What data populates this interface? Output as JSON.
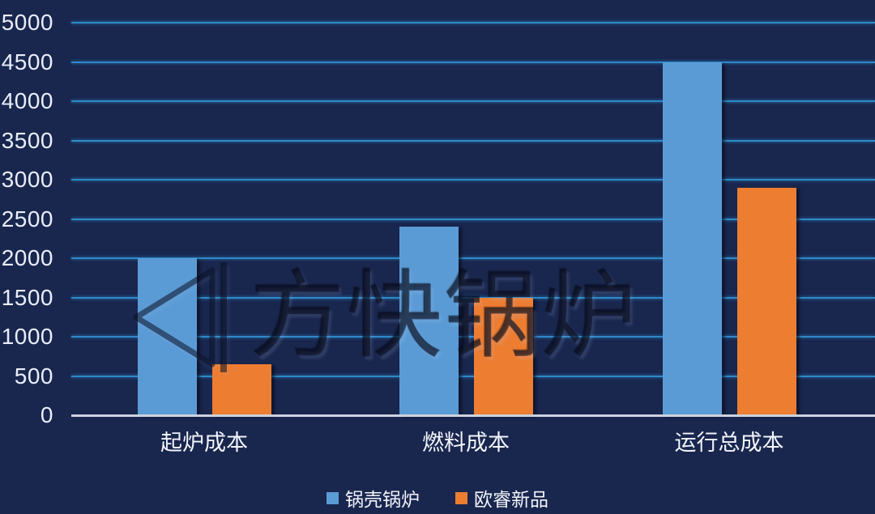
{
  "chart_data": {
    "type": "bar",
    "title": "",
    "xlabel": "",
    "ylabel": "",
    "categories": [
      "起炉成本",
      "燃料成本",
      "运行总成本"
    ],
    "series": [
      {
        "name": "锅壳锅炉",
        "color": "#5b9bd5",
        "values": [
          2000,
          2400,
          4500
        ]
      },
      {
        "name": "欧睿新品",
        "color": "#ed7d31",
        "values": [
          650,
          1500,
          2900
        ]
      }
    ],
    "ylim": [
      0,
      5000
    ],
    "ytick_step": 500,
    "yticks": [
      0,
      500,
      1000,
      1500,
      2000,
      2500,
      3000,
      3500,
      4000,
      4500,
      5000
    ],
    "grid": true,
    "gridline_color": "#2e8ac8",
    "axis_line_color": "#ccd2de",
    "background_color": "#19264e",
    "tick_label_color": "#e9eef9",
    "legend_position": "bottom"
  },
  "watermark": {
    "text": "方快锅炉"
  }
}
